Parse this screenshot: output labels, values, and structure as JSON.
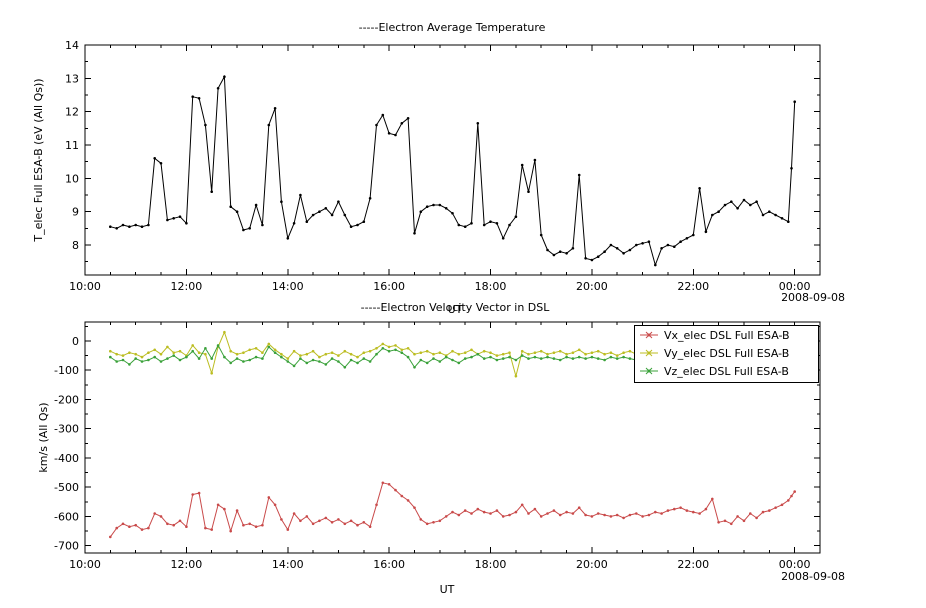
{
  "date_label": "2008-09-08",
  "chart_data": [
    {
      "type": "line",
      "title": "-----Electron Average Temperature",
      "ylabel": "T_elec Full ESA-B (eV (All Qs))",
      "xlabel": "UT",
      "xlim": [
        10,
        24.5
      ],
      "ylim": [
        7.1,
        14
      ],
      "x_ticks": [
        10,
        12,
        14,
        16,
        18,
        20,
        22,
        24
      ],
      "x_tick_labels": [
        "10:00",
        "12:00",
        "14:00",
        "16:00",
        "18:00",
        "20:00",
        "22:00",
        "00:00"
      ],
      "y_ticks": [
        8,
        9,
        10,
        11,
        12,
        13,
        14
      ],
      "legend": false,
      "x": [
        10.5,
        10.625,
        10.75,
        10.875,
        11.0,
        11.125,
        11.25,
        11.375,
        11.5,
        11.625,
        11.75,
        11.875,
        12.0,
        12.125,
        12.25,
        12.375,
        12.5,
        12.625,
        12.75,
        12.875,
        13.0,
        13.125,
        13.25,
        13.375,
        13.5,
        13.625,
        13.75,
        13.875,
        14.0,
        14.125,
        14.25,
        14.375,
        14.5,
        14.625,
        14.75,
        14.875,
        15.0,
        15.125,
        15.25,
        15.375,
        15.5,
        15.625,
        15.75,
        15.875,
        16.0,
        16.125,
        16.25,
        16.375,
        16.5,
        16.625,
        16.75,
        16.875,
        17.0,
        17.125,
        17.25,
        17.375,
        17.5,
        17.625,
        17.75,
        17.875,
        18.0,
        18.125,
        18.25,
        18.375,
        18.5,
        18.625,
        18.75,
        18.875,
        19.0,
        19.125,
        19.25,
        19.375,
        19.5,
        19.625,
        19.75,
        19.875,
        20.0,
        20.125,
        20.25,
        20.375,
        20.5,
        20.625,
        20.75,
        20.875,
        21.0,
        21.125,
        21.25,
        21.375,
        21.5,
        21.625,
        21.75,
        21.875,
        22.0,
        22.125,
        22.25,
        22.375,
        22.5,
        22.625,
        22.75,
        22.875,
        23.0,
        23.125,
        23.25,
        23.375,
        23.5,
        23.625,
        23.75,
        23.875,
        23.9375,
        24.0
      ],
      "series": [
        {
          "name": "T_elec Full ESA-B",
          "color": "#000000",
          "values": [
            8.55,
            8.5,
            8.6,
            8.55,
            8.6,
            8.55,
            8.6,
            10.6,
            10.45,
            8.75,
            8.8,
            8.85,
            8.65,
            12.45,
            12.4,
            11.6,
            9.6,
            12.7,
            13.05,
            9.15,
            9.0,
            8.45,
            8.5,
            9.2,
            8.6,
            11.6,
            12.1,
            9.3,
            8.2,
            8.65,
            9.5,
            8.7,
            8.9,
            9.0,
            9.1,
            8.9,
            9.3,
            8.9,
            8.55,
            8.6,
            8.7,
            9.4,
            11.6,
            11.9,
            11.35,
            11.3,
            11.65,
            11.8,
            8.35,
            9.0,
            9.15,
            9.2,
            9.2,
            9.1,
            8.95,
            8.6,
            8.55,
            8.65,
            11.65,
            8.6,
            8.7,
            8.65,
            8.2,
            8.6,
            8.85,
            10.4,
            9.6,
            10.55,
            8.3,
            7.85,
            7.7,
            7.8,
            7.75,
            7.9,
            10.1,
            7.6,
            7.55,
            7.65,
            7.8,
            8.0,
            7.9,
            7.75,
            7.85,
            8.0,
            8.05,
            8.1,
            7.4,
            7.9,
            8.0,
            7.95,
            8.1,
            8.2,
            8.3,
            9.7,
            8.4,
            8.9,
            9.0,
            9.2,
            9.3,
            9.1,
            9.35,
            9.2,
            9.3,
            8.9,
            9.0,
            8.9,
            8.8,
            8.7,
            10.3,
            12.3
          ]
        }
      ]
    },
    {
      "type": "line",
      "title": "-----Electron Velocity Vector in DSL",
      "ylabel": "km/s (All Qs)",
      "xlabel": "UT",
      "xlim": [
        10,
        24.5
      ],
      "ylim": [
        -725,
        65
      ],
      "x_ticks": [
        10,
        12,
        14,
        16,
        18,
        20,
        22,
        24
      ],
      "x_tick_labels": [
        "10:00",
        "12:00",
        "14:00",
        "16:00",
        "18:00",
        "20:00",
        "22:00",
        "00:00"
      ],
      "y_ticks": [
        0,
        -100,
        -200,
        -300,
        -400,
        -500,
        -600,
        -700
      ],
      "legend": true,
      "x": [
        10.5,
        10.625,
        10.75,
        10.875,
        11.0,
        11.125,
        11.25,
        11.375,
        11.5,
        11.625,
        11.75,
        11.875,
        12.0,
        12.125,
        12.25,
        12.375,
        12.5,
        12.625,
        12.75,
        12.875,
        13.0,
        13.125,
        13.25,
        13.375,
        13.5,
        13.625,
        13.75,
        13.875,
        14.0,
        14.125,
        14.25,
        14.375,
        14.5,
        14.625,
        14.75,
        14.875,
        15.0,
        15.125,
        15.25,
        15.375,
        15.5,
        15.625,
        15.75,
        15.875,
        16.0,
        16.125,
        16.25,
        16.375,
        16.5,
        16.625,
        16.75,
        16.875,
        17.0,
        17.125,
        17.25,
        17.375,
        17.5,
        17.625,
        17.75,
        17.875,
        18.0,
        18.125,
        18.25,
        18.375,
        18.5,
        18.625,
        18.75,
        18.875,
        19.0,
        19.125,
        19.25,
        19.375,
        19.5,
        19.625,
        19.75,
        19.875,
        20.0,
        20.125,
        20.25,
        20.375,
        20.5,
        20.625,
        20.75,
        20.875,
        21.0,
        21.125,
        21.25,
        21.375,
        21.5,
        21.625,
        21.75,
        21.875,
        22.0,
        22.125,
        22.25,
        22.375,
        22.5,
        22.625,
        22.75,
        22.875,
        23.0,
        23.125,
        23.25,
        23.375,
        23.5,
        23.625,
        23.75,
        23.875,
        23.9375,
        24.0
      ],
      "series": [
        {
          "name": "Vx_elec DSL Full ESA-B",
          "color": "#c94a4a",
          "values": [
            -670,
            -640,
            -625,
            -635,
            -630,
            -645,
            -640,
            -590,
            -600,
            -625,
            -630,
            -615,
            -635,
            -525,
            -520,
            -640,
            -645,
            -560,
            -575,
            -650,
            -580,
            -630,
            -625,
            -635,
            -630,
            -535,
            -560,
            -610,
            -645,
            -590,
            -615,
            -600,
            -625,
            -615,
            -605,
            -620,
            -610,
            -625,
            -615,
            -630,
            -620,
            -635,
            -560,
            -485,
            -490,
            -510,
            -530,
            -545,
            -570,
            -610,
            -625,
            -620,
            -615,
            -600,
            -585,
            -595,
            -580,
            -590,
            -575,
            -585,
            -590,
            -580,
            -600,
            -595,
            -585,
            -560,
            -590,
            -575,
            -600,
            -590,
            -580,
            -595,
            -585,
            -590,
            -570,
            -595,
            -600,
            -590,
            -595,
            -600,
            -595,
            -605,
            -595,
            -590,
            -600,
            -595,
            -585,
            -590,
            -580,
            -575,
            -570,
            -580,
            -585,
            -590,
            -575,
            -540,
            -620,
            -615,
            -625,
            -600,
            -615,
            -590,
            -605,
            -585,
            -580,
            -570,
            -560,
            -545,
            -530,
            -515
          ]
        },
        {
          "name": "Vy_elec DSL Full ESA-B",
          "color": "#bcbd22",
          "values": [
            -35,
            -45,
            -50,
            -40,
            -45,
            -55,
            -40,
            -30,
            -45,
            -20,
            -40,
            -35,
            -50,
            -15,
            -40,
            -45,
            -110,
            -20,
            30,
            -35,
            -45,
            -40,
            -30,
            -25,
            -40,
            -10,
            -30,
            -45,
            -60,
            -35,
            -50,
            -45,
            -35,
            -55,
            -45,
            -40,
            -50,
            -35,
            -45,
            -55,
            -40,
            -35,
            -25,
            -10,
            -20,
            -15,
            -30,
            -25,
            -45,
            -40,
            -35,
            -45,
            -40,
            -50,
            -35,
            -45,
            -40,
            -30,
            -45,
            -35,
            -40,
            -50,
            -45,
            -40,
            -120,
            -35,
            -45,
            -40,
            -35,
            -45,
            -40,
            -35,
            -45,
            -40,
            -30,
            -45,
            -40,
            -35,
            -45,
            -40,
            -50,
            -40,
            -35,
            -45,
            -40,
            -35,
            -45,
            -40,
            -30,
            -45,
            -40,
            -35,
            -45,
            -50,
            -40,
            -35,
            -45,
            -40,
            -35,
            -45,
            -40,
            -35,
            -45,
            -40,
            -45,
            -35,
            -40,
            -35,
            -30,
            -30
          ]
        },
        {
          "name": "Vz_elec DSL Full ESA-B",
          "color": "#3aa13a",
          "values": [
            -55,
            -70,
            -65,
            -80,
            -60,
            -70,
            -65,
            -55,
            -70,
            -60,
            -50,
            -65,
            -55,
            -35,
            -60,
            -25,
            -60,
            -15,
            -55,
            -75,
            -60,
            -70,
            -65,
            -55,
            -60,
            -20,
            -40,
            -55,
            -70,
            -85,
            -60,
            -75,
            -65,
            -70,
            -80,
            -60,
            -70,
            -90,
            -65,
            -75,
            -60,
            -70,
            -45,
            -25,
            -35,
            -30,
            -40,
            -55,
            -90,
            -65,
            -75,
            -60,
            -70,
            -55,
            -65,
            -75,
            -60,
            -55,
            -45,
            -60,
            -55,
            -65,
            -60,
            -55,
            -65,
            -50,
            -60,
            -55,
            -60,
            -55,
            -60,
            -65,
            -55,
            -60,
            -55,
            -60,
            -55,
            -60,
            -65,
            -55,
            -60,
            -55,
            -60,
            -65,
            -55,
            -60,
            -55,
            -65,
            -60,
            -55,
            -60,
            -55,
            -60,
            -55,
            -60,
            -50,
            -65,
            -60,
            -55,
            -65,
            -60,
            -55,
            -60,
            -55,
            -60,
            -55,
            -60,
            -55,
            -50,
            -50
          ]
        }
      ]
    }
  ]
}
